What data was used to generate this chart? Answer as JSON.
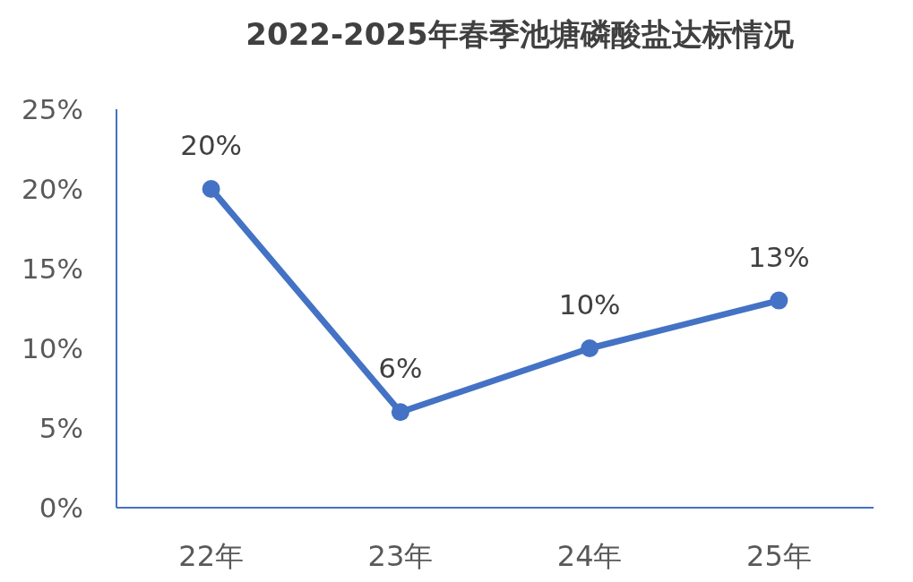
{
  "chart_data": {
    "type": "line",
    "title": "2022-2025年春季池塘磷酸盐达标情况",
    "categories": [
      "22年",
      "23年",
      "24年",
      "25年"
    ],
    "series": [
      {
        "color": "#4472c4",
        "values": [
          20,
          6,
          10,
          13
        ]
      }
    ],
    "value_labels": [
      "20%",
      "6%",
      "10%",
      "13%"
    ],
    "ylim": [
      0,
      25
    ],
    "yticks": [
      {
        "value": 0,
        "label": "0%"
      },
      {
        "value": 5,
        "label": "5%"
      },
      {
        "value": 10,
        "label": "10%"
      },
      {
        "value": 15,
        "label": "15%"
      },
      {
        "value": 20,
        "label": "20%"
      },
      {
        "value": 25,
        "label": "25%"
      }
    ],
    "marker": "circle",
    "line_style": "solid",
    "grid": false
  }
}
